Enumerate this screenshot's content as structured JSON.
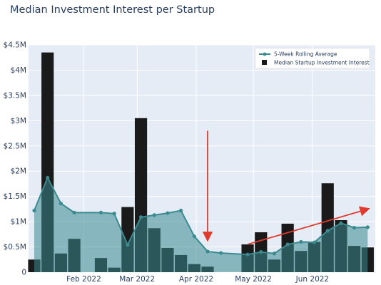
{
  "chart_data": {
    "type": "bar",
    "title": "Median Investment Interest per Startup",
    "xlabel": "",
    "ylabel": "",
    "ylim": [
      0,
      4500000
    ],
    "y_ticks": [
      {
        "value": 0,
        "label": "0"
      },
      {
        "value": 500000,
        "label": "$0.5M"
      },
      {
        "value": 1000000,
        "label": "$1M"
      },
      {
        "value": 1500000,
        "label": "$1.5M"
      },
      {
        "value": 2000000,
        "label": "$2M"
      },
      {
        "value": 2500000,
        "label": "$2.5M"
      },
      {
        "value": 3000000,
        "label": "$3M"
      },
      {
        "value": 3500000,
        "label": "$3.5M"
      },
      {
        "value": 4000000,
        "label": "$4M"
      },
      {
        "value": 4500000,
        "label": "$4.5M"
      }
    ],
    "xlim": [
      "2022-01-03",
      "2022-07-04"
    ],
    "x_ticks": [
      {
        "value": "2022-02-01",
        "label": "Feb 2022"
      },
      {
        "value": "2022-03-01",
        "label": "Mar 2022"
      },
      {
        "value": "2022-04-01",
        "label": "Apr 2022"
      },
      {
        "value": "2022-05-01",
        "label": "May 2022"
      },
      {
        "value": "2022-06-01",
        "label": "Jun 2022"
      }
    ],
    "grid": true,
    "legend_position": "top-right",
    "series": [
      {
        "name": "Median Startup Investment Interest",
        "type": "bar",
        "color": "#1a1a1a",
        "x": [
          "2022-01-06",
          "2022-01-13",
          "2022-01-20",
          "2022-01-27",
          "2022-02-03",
          "2022-02-10",
          "2022-02-17",
          "2022-02-24",
          "2022-03-03",
          "2022-03-10",
          "2022-03-17",
          "2022-03-24",
          "2022-03-31",
          "2022-04-07",
          "2022-04-14",
          "2022-04-21",
          "2022-04-28",
          "2022-05-05",
          "2022-05-12",
          "2022-05-19",
          "2022-05-26",
          "2022-06-02",
          "2022-06-09",
          "2022-06-16",
          "2022-06-23",
          "2022-06-30"
        ],
        "values": [
          250000,
          4350000,
          370000,
          660000,
          0,
          280000,
          90000,
          1290000,
          3050000,
          870000,
          480000,
          340000,
          160000,
          110000,
          0,
          0,
          550000,
          790000,
          250000,
          960000,
          420000,
          600000,
          1760000,
          1030000,
          520000,
          490000
        ]
      },
      {
        "name": "5-Week Rolling Average",
        "type": "area",
        "color": "#3a8a8f",
        "x": [
          "2022-01-06",
          "2022-01-13",
          "2022-01-20",
          "2022-01-27",
          "2022-02-10",
          "2022-02-17",
          "2022-02-24",
          "2022-03-03",
          "2022-03-10",
          "2022-03-17",
          "2022-03-24",
          "2022-03-31",
          "2022-04-07",
          "2022-04-14",
          "2022-04-28",
          "2022-05-05",
          "2022-05-12",
          "2022-05-19",
          "2022-05-26",
          "2022-06-02",
          "2022-06-09",
          "2022-06-16",
          "2022-06-23",
          "2022-06-30"
        ],
        "values": [
          1220000,
          1870000,
          1360000,
          1180000,
          1180000,
          1160000,
          540000,
          1090000,
          1130000,
          1170000,
          1220000,
          710000,
          410000,
          380000,
          350000,
          400000,
          370000,
          550000,
          600000,
          590000,
          820000,
          970000,
          880000,
          890000
        ]
      }
    ],
    "annotations": [
      {
        "type": "arrow",
        "direction": "down",
        "color": "#e03a2f",
        "from": {
          "x": "2022-04-07",
          "y": 2800000
        },
        "to": {
          "x": "2022-04-07",
          "y": 650000
        }
      },
      {
        "type": "arrow",
        "direction": "up-right",
        "color": "#e03a2f",
        "from": {
          "x": "2022-04-28",
          "y": 550000
        },
        "to": {
          "x": "2022-06-30",
          "y": 1250000
        }
      }
    ]
  }
}
